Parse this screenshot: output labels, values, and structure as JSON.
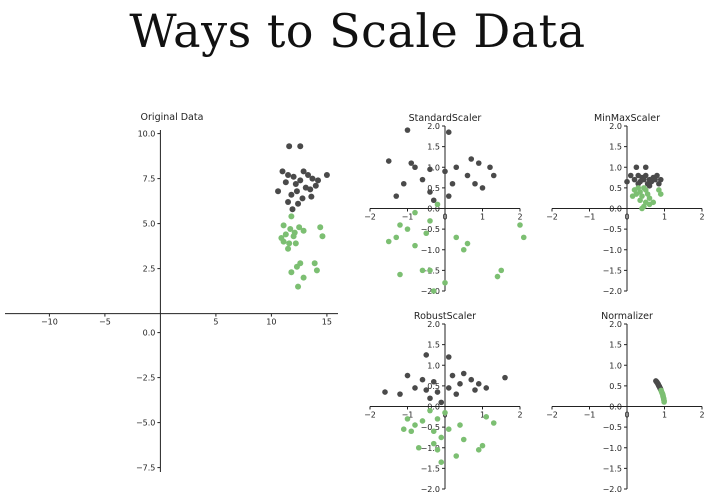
{
  "page": {
    "title": "Ways to Scale Data"
  },
  "colors": {
    "cluster_a": "#4a4a4a",
    "cluster_b": "#7cbf72",
    "axis": "#222222"
  },
  "chart_data": [
    {
      "type": "scatter",
      "title": "Original Data",
      "xlim": [
        -14,
        16
      ],
      "ylim": [
        -8.8,
        10.2
      ],
      "xticks": [
        -10,
        -5,
        5,
        10,
        15
      ],
      "xtick_labels": [
        "−10",
        "−5",
        "5",
        "10",
        "15"
      ],
      "yticks_upper": [
        2.5,
        5.0,
        7.5,
        10.0
      ],
      "yticks_upper_labels": [
        "2.5",
        "5.0",
        "7.5",
        "10.0"
      ],
      "yticks_lower": [
        0.0,
        -2.5,
        -5.0,
        -7.5
      ],
      "yticks_lower_labels": [
        "0.0",
        "−2.5",
        "−5.0",
        "−7.5"
      ],
      "series": [
        {
          "color": "#4a4a4a",
          "points": [
            [
              11.6,
              9.3
            ],
            [
              12.6,
              9.3
            ],
            [
              11.0,
              7.9
            ],
            [
              11.5,
              7.7
            ],
            [
              12.0,
              7.6
            ],
            [
              12.9,
              7.9
            ],
            [
              13.3,
              7.7
            ],
            [
              13.7,
              7.5
            ],
            [
              14.2,
              7.4
            ],
            [
              15.0,
              7.7
            ],
            [
              11.3,
              7.3
            ],
            [
              12.2,
              7.2
            ],
            [
              12.6,
              7.4
            ],
            [
              13.1,
              7.0
            ],
            [
              13.5,
              6.9
            ],
            [
              14.0,
              7.1
            ],
            [
              10.6,
              6.8
            ],
            [
              11.8,
              6.6
            ],
            [
              12.3,
              6.8
            ],
            [
              12.8,
              6.4
            ],
            [
              13.6,
              6.5
            ],
            [
              11.5,
              6.2
            ],
            [
              12.4,
              6.1
            ],
            [
              11.9,
              5.8
            ]
          ]
        },
        {
          "color": "#7cbf72",
          "points": [
            [
              11.8,
              5.4
            ],
            [
              11.1,
              4.9
            ],
            [
              11.7,
              4.7
            ],
            [
              12.1,
              4.5
            ],
            [
              12.5,
              4.8
            ],
            [
              11.3,
              4.4
            ],
            [
              10.9,
              4.2
            ],
            [
              12.0,
              4.3
            ],
            [
              12.9,
              4.6
            ],
            [
              14.4,
              4.8
            ],
            [
              11.1,
              4.0
            ],
            [
              11.6,
              3.9
            ],
            [
              14.6,
              4.3
            ],
            [
              12.2,
              3.9
            ],
            [
              11.5,
              3.6
            ],
            [
              12.6,
              2.8
            ],
            [
              12.3,
              2.6
            ],
            [
              13.9,
              2.8
            ],
            [
              14.1,
              2.4
            ],
            [
              11.8,
              2.3
            ],
            [
              12.9,
              2.0
            ],
            [
              12.4,
              1.5
            ]
          ]
        }
      ]
    },
    {
      "type": "scatter",
      "title": "StandardScaler",
      "xlim": [
        -2,
        2
      ],
      "ylim": [
        -2,
        2
      ],
      "xticks": [
        -2,
        -1,
        0,
        1,
        2
      ],
      "xtick_labels": [
        "−2",
        "−1",
        "0",
        "1",
        "2"
      ],
      "yticks": [
        2.0,
        1.5,
        1.0,
        0.5,
        0.0,
        -0.5,
        -1.0,
        -1.5,
        -2.0
      ],
      "ytick_labels": [
        "2.0",
        "1.5",
        "1.0",
        "0.5",
        "0.0",
        "−0.5",
        "−1.0",
        "−1.5",
        "−2.0"
      ],
      "series": [
        {
          "color": "#4a4a4a",
          "points": [
            [
              -1.0,
              1.9
            ],
            [
              0.1,
              1.85
            ],
            [
              -1.5,
              1.15
            ],
            [
              -0.9,
              1.1
            ],
            [
              -0.8,
              1.0
            ],
            [
              -0.4,
              0.95
            ],
            [
              0.3,
              1.0
            ],
            [
              0.7,
              1.2
            ],
            [
              0.9,
              1.1
            ],
            [
              1.2,
              1.0
            ],
            [
              1.3,
              0.8
            ],
            [
              -0.6,
              0.7
            ],
            [
              0.0,
              0.9
            ],
            [
              0.6,
              0.8
            ],
            [
              0.8,
              0.6
            ],
            [
              -1.1,
              0.6
            ],
            [
              -0.4,
              0.4
            ],
            [
              0.2,
              0.6
            ],
            [
              1.0,
              0.5
            ],
            [
              -1.3,
              0.3
            ],
            [
              -0.3,
              0.2
            ],
            [
              0.1,
              0.3
            ]
          ]
        },
        {
          "color": "#7cbf72",
          "points": [
            [
              -0.2,
              0.1
            ],
            [
              -0.8,
              -0.1
            ],
            [
              -0.4,
              -0.3
            ],
            [
              2.0,
              -0.4
            ],
            [
              -1.2,
              -0.4
            ],
            [
              -1.0,
              -0.5
            ],
            [
              -0.5,
              -0.6
            ],
            [
              -1.5,
              -0.8
            ],
            [
              -1.3,
              -0.7
            ],
            [
              0.3,
              -0.7
            ],
            [
              0.6,
              -0.85
            ],
            [
              -0.8,
              -0.9
            ],
            [
              0.5,
              -1.0
            ],
            [
              2.1,
              -0.7
            ],
            [
              1.5,
              -1.5
            ],
            [
              -0.6,
              -1.5
            ],
            [
              -0.4,
              -1.5
            ],
            [
              1.4,
              -1.65
            ],
            [
              0.0,
              -1.8
            ],
            [
              -1.2,
              -1.6
            ],
            [
              -0.3,
              -2.0
            ]
          ]
        }
      ]
    },
    {
      "type": "scatter",
      "title": "MinMaxScaler",
      "xlim": [
        -2,
        2
      ],
      "ylim": [
        -2,
        2
      ],
      "xticks": [
        -2,
        -1,
        0,
        1,
        2
      ],
      "xtick_labels": [
        "−2",
        "−1",
        "0",
        "1",
        "2"
      ],
      "yticks": [
        2.0,
        1.5,
        1.0,
        0.5,
        0.0,
        -0.5,
        -1.0,
        -1.5,
        -2.0
      ],
      "ytick_labels": [
        "2.0",
        "1.5",
        "1.0",
        "0.5",
        "0.0",
        "−0.5",
        "−1.0",
        "−1.5",
        "−2.0"
      ],
      "series": [
        {
          "color": "#4a4a4a",
          "points": [
            [
              0.25,
              1.0
            ],
            [
              0.5,
              1.0
            ],
            [
              0.1,
              0.8
            ],
            [
              0.3,
              0.8
            ],
            [
              0.4,
              0.75
            ],
            [
              0.5,
              0.8
            ],
            [
              0.6,
              0.7
            ],
            [
              0.7,
              0.75
            ],
            [
              0.8,
              0.8
            ],
            [
              0.9,
              0.7
            ],
            [
              0.2,
              0.7
            ],
            [
              0.35,
              0.65
            ],
            [
              0.55,
              0.6
            ],
            [
              0.65,
              0.65
            ],
            [
              0.75,
              0.7
            ],
            [
              0.0,
              0.65
            ],
            [
              0.45,
              0.7
            ],
            [
              0.85,
              0.6
            ],
            [
              0.3,
              0.6
            ],
            [
              0.6,
              0.55
            ]
          ]
        },
        {
          "color": "#7cbf72",
          "points": [
            [
              0.3,
              0.5
            ],
            [
              0.2,
              0.45
            ],
            [
              0.35,
              0.4
            ],
            [
              0.45,
              0.5
            ],
            [
              0.5,
              0.45
            ],
            [
              0.25,
              0.35
            ],
            [
              0.4,
              0.3
            ],
            [
              0.55,
              0.35
            ],
            [
              0.85,
              0.45
            ],
            [
              0.9,
              0.35
            ],
            [
              0.15,
              0.3
            ],
            [
              0.6,
              0.25
            ],
            [
              0.35,
              0.2
            ],
            [
              0.5,
              0.15
            ],
            [
              0.7,
              0.15
            ],
            [
              0.45,
              0.05
            ],
            [
              0.6,
              0.1
            ],
            [
              0.4,
              0.0
            ]
          ]
        }
      ]
    },
    {
      "type": "scatter",
      "title": "RobustScaler",
      "xlim": [
        -2,
        2
      ],
      "ylim": [
        -2,
        2
      ],
      "xticks": [
        -2,
        -1,
        0,
        1,
        2
      ],
      "xtick_labels": [
        "−2",
        "−1",
        "0",
        "1",
        "2"
      ],
      "yticks": [
        2.0,
        1.5,
        1.0,
        0.5,
        0.0,
        -0.5,
        -1.0,
        -1.5,
        -2.0
      ],
      "ytick_labels": [
        "2.0",
        "1.5",
        "1.0",
        "0.5",
        "0.0",
        "−0.5",
        "−1.0",
        "−1.5",
        "−2.0"
      ],
      "series": [
        {
          "color": "#4a4a4a",
          "points": [
            [
              -1.6,
              0.35
            ],
            [
              -0.5,
              1.25
            ],
            [
              0.1,
              1.2
            ],
            [
              -1.0,
              0.75
            ],
            [
              -0.6,
              0.65
            ],
            [
              -0.3,
              0.6
            ],
            [
              0.2,
              0.75
            ],
            [
              0.5,
              0.8
            ],
            [
              0.7,
              0.65
            ],
            [
              0.9,
              0.55
            ],
            [
              1.1,
              0.45
            ],
            [
              1.6,
              0.7
            ],
            [
              -0.8,
              0.45
            ],
            [
              -0.5,
              0.4
            ],
            [
              -0.2,
              0.35
            ],
            [
              0.1,
              0.45
            ],
            [
              0.4,
              0.55
            ],
            [
              -1.2,
              0.3
            ],
            [
              -0.4,
              0.2
            ],
            [
              0.3,
              0.3
            ],
            [
              0.8,
              0.4
            ],
            [
              -0.1,
              0.1
            ]
          ]
        },
        {
          "color": "#7cbf72",
          "points": [
            [
              -0.4,
              -0.1
            ],
            [
              0.0,
              -0.15
            ],
            [
              -1.0,
              -0.3
            ],
            [
              -0.6,
              -0.35
            ],
            [
              -0.2,
              -0.3
            ],
            [
              -0.8,
              -0.45
            ],
            [
              -1.1,
              -0.55
            ],
            [
              0.4,
              -0.45
            ],
            [
              1.1,
              -0.25
            ],
            [
              1.3,
              -0.4
            ],
            [
              -0.9,
              -0.6
            ],
            [
              0.1,
              -0.55
            ],
            [
              -0.3,
              -0.6
            ],
            [
              -0.1,
              -0.75
            ],
            [
              0.5,
              -0.8
            ],
            [
              1.0,
              -0.95
            ],
            [
              -0.3,
              -0.9
            ],
            [
              -0.2,
              -1.05
            ],
            [
              0.9,
              -1.05
            ],
            [
              0.3,
              -1.2
            ],
            [
              -0.7,
              -1.0
            ],
            [
              -0.1,
              -1.35
            ]
          ]
        }
      ]
    },
    {
      "type": "scatter",
      "title": "Normalizer",
      "xlim": [
        -2,
        2
      ],
      "ylim": [
        -2,
        2
      ],
      "xticks": [
        -2,
        -1,
        0,
        1,
        2
      ],
      "xtick_labels": [
        "−2",
        "−1",
        "0",
        "1",
        "2"
      ],
      "yticks": [
        2.0,
        1.5,
        1.0,
        0.5,
        0.0,
        -0.5,
        -1.0,
        -1.5,
        -2.0
      ],
      "ytick_labels": [
        "2.0",
        "1.5",
        "1.0",
        "0.5",
        "0.0",
        "−0.5",
        "−1.0",
        "−1.5",
        "−2.0"
      ],
      "series": [
        {
          "color": "#4a4a4a",
          "points": [
            [
              0.77,
              0.62
            ],
            [
              0.79,
              0.6
            ],
            [
              0.8,
              0.58
            ],
            [
              0.82,
              0.56
            ],
            [
              0.83,
              0.54
            ],
            [
              0.84,
              0.52
            ],
            [
              0.85,
              0.5
            ],
            [
              0.86,
              0.49
            ],
            [
              0.87,
              0.47
            ],
            [
              0.88,
              0.45
            ],
            [
              0.89,
              0.43
            ],
            [
              0.9,
              0.41
            ]
          ]
        },
        {
          "color": "#7cbf72",
          "points": [
            [
              0.91,
              0.39
            ],
            [
              0.92,
              0.36
            ],
            [
              0.93,
              0.34
            ],
            [
              0.94,
              0.32
            ],
            [
              0.95,
              0.3
            ],
            [
              0.96,
              0.27
            ],
            [
              0.96,
              0.25
            ],
            [
              0.97,
              0.22
            ],
            [
              0.98,
              0.19
            ],
            [
              0.98,
              0.17
            ],
            [
              0.99,
              0.14
            ],
            [
              0.99,
              0.11
            ]
          ]
        }
      ]
    }
  ]
}
